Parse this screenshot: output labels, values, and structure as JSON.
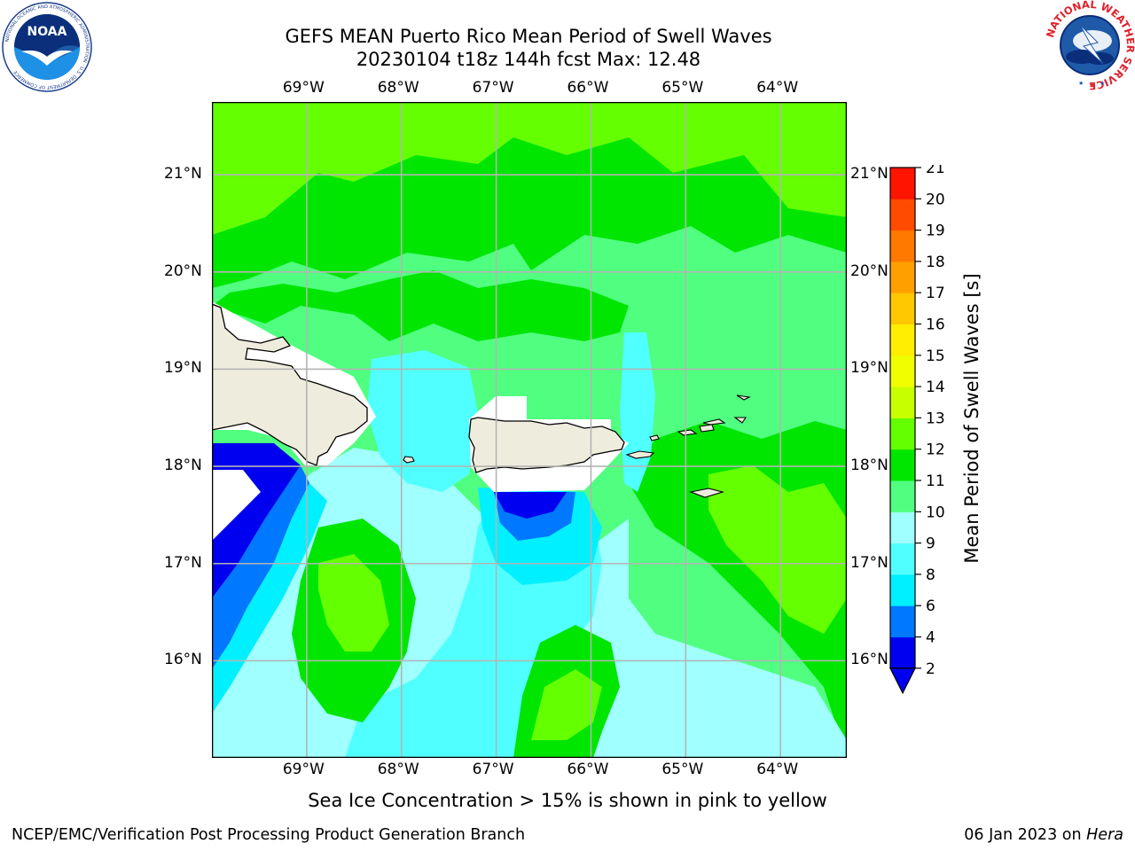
{
  "header": {
    "title_line1": "GEFS MEAN Puerto Rico Mean Period of Swell Waves",
    "title_line2": "20230104 t18z 144h fcst   Max: 12.48"
  },
  "logos": {
    "left": {
      "name": "noaa-logo",
      "text": "NOAA",
      "ring_text": "NATIONAL OCEANIC AND ATMOSPHERIC ADMINISTRATION · U.S. DEPARTMENT OF COMMERCE"
    },
    "right": {
      "name": "nws-logo",
      "ring_text": "NATIONAL WEATHER SERVICE"
    }
  },
  "map": {
    "lon_labels": [
      "69°W",
      "68°W",
      "67°W",
      "66°W",
      "65°W",
      "64°W"
    ],
    "lat_labels": [
      "21°N",
      "20°N",
      "19°N",
      "18°N",
      "17°N",
      "16°N"
    ],
    "grid": true,
    "extent": {
      "lon": [
        -70.0,
        -63.3
      ],
      "lat": [
        15.0,
        21.75
      ]
    }
  },
  "colorbar": {
    "label": "Mean Period of Swell Waves [s]",
    "ticks": [
      "2",
      "4",
      "6",
      "8",
      "9",
      "10",
      "11",
      "12",
      "13",
      "14",
      "15",
      "16",
      "17",
      "18",
      "19",
      "20",
      "21"
    ],
    "colors": [
      "#0000f0",
      "#0078ff",
      "#00f0ff",
      "#50ffff",
      "#a0ffff",
      "#50ff80",
      "#00e600",
      "#64ff00",
      "#c8ff00",
      "#f0ff00",
      "#ffee00",
      "#ffc800",
      "#ffa000",
      "#ff7800",
      "#ff4b00",
      "#ff1400"
    ],
    "under_color": "#0000f0"
  },
  "note": "Sea Ice Concentration > 15% is shown in pink to yellow",
  "footer": {
    "left": "NCEP/EMC/Verification Post Processing Product Generation Branch",
    "right_prefix": "06 Jan 2023 on ",
    "right_host": "Hera"
  },
  "colors": {
    "land": "#eeecdc",
    "grid": "#b4b4b4",
    "frame": "#000000"
  }
}
